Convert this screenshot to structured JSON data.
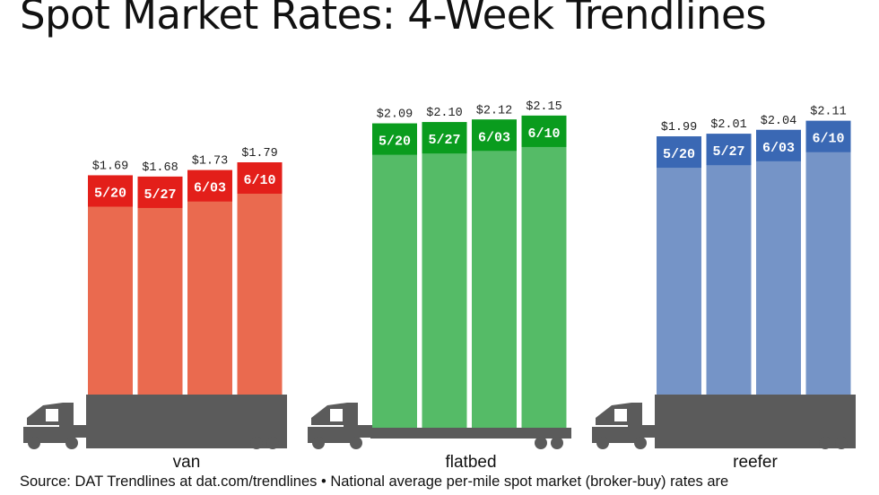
{
  "title": "Spot Market Rates: 4-Week Trendlines",
  "source": "Source: DAT Trendlines at dat.com/trendlines • National average per-mile spot market (broker-buy) rates are",
  "chart_data": [
    {
      "type": "bar",
      "group_label": "van",
      "color": "#ea6a4f",
      "tag_color": "#e31f1a",
      "categories": [
        "5/20",
        "5/27",
        "6/03",
        "6/10"
      ],
      "values": [
        1.69,
        1.68,
        1.73,
        1.79
      ],
      "value_labels": [
        "$1.69",
        "$1.68",
        "$1.73",
        "$1.79"
      ]
    },
    {
      "type": "bar",
      "group_label": "flatbed",
      "color": "#55bb67",
      "tag_color": "#0a9c1e",
      "categories": [
        "5/20",
        "5/27",
        "6/03",
        "6/10"
      ],
      "values": [
        2.09,
        2.1,
        2.12,
        2.15
      ],
      "value_labels": [
        "$2.09",
        "$2.10",
        "$2.12",
        "$2.15"
      ]
    },
    {
      "type": "bar",
      "group_label": "reefer",
      "color": "#7594c7",
      "tag_color": "#3a68b4",
      "categories": [
        "5/20",
        "5/27",
        "6/03",
        "6/10"
      ],
      "values": [
        1.99,
        2.01,
        2.04,
        2.11
      ],
      "value_labels": [
        "$1.99",
        "$2.01",
        "$2.04",
        "$2.11"
      ]
    }
  ],
  "colors": {
    "truck": "#5b5b5b"
  },
  "icons": [
    "truck-cab-icon"
  ]
}
